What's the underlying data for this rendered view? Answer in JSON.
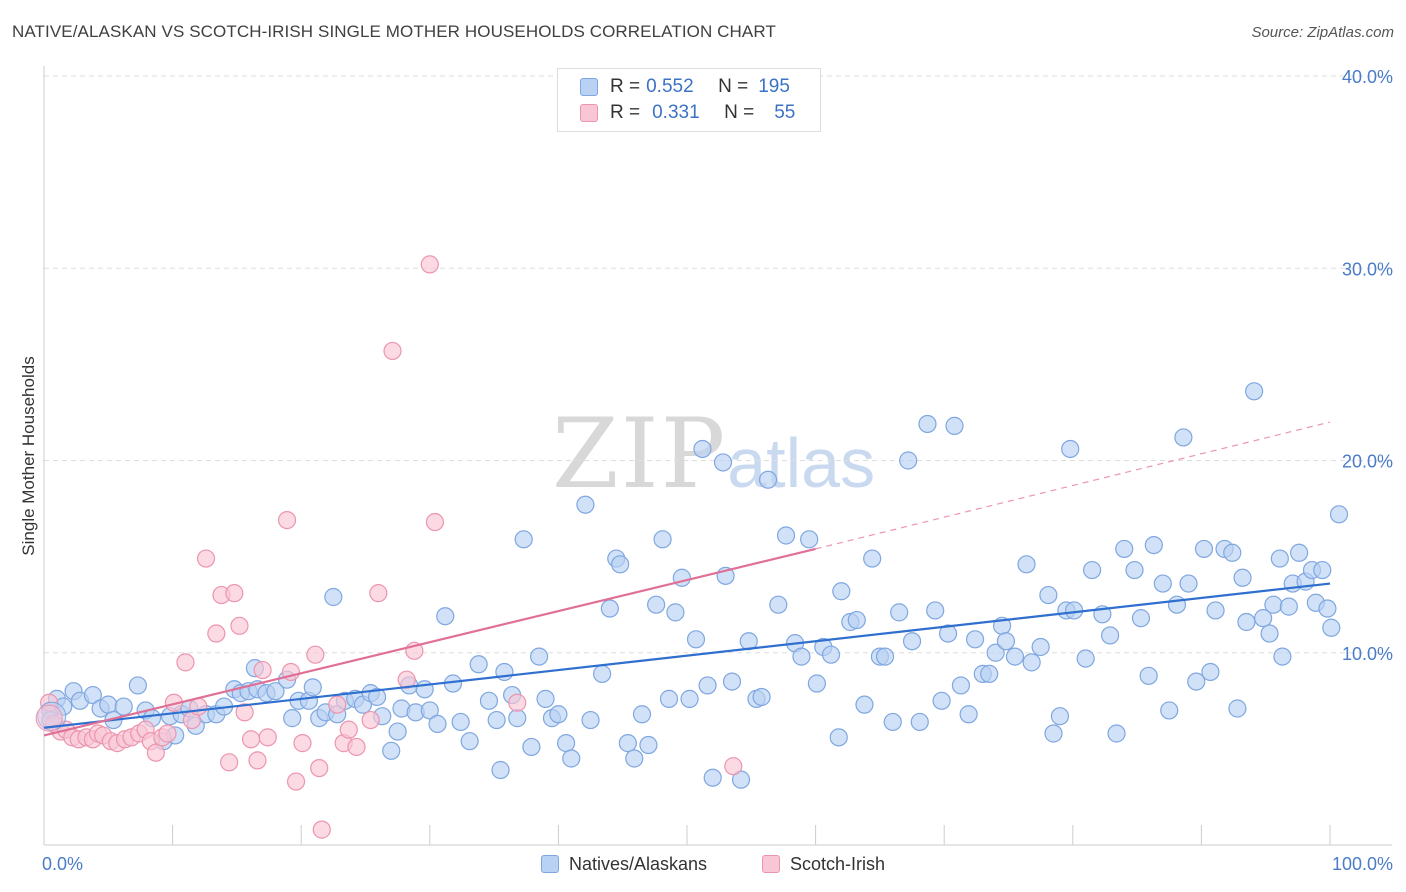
{
  "title": "NATIVE/ALASKAN VS SCOTCH-IRISH SINGLE MOTHER HOUSEHOLDS CORRELATION CHART",
  "source": "Source: ZipAtlas.com",
  "watermark": {
    "zip": "ZIP",
    "atlas": "atlas"
  },
  "legend": [
    {
      "r_label": "R =",
      "r_value": "0.552",
      "n_label": "N =",
      "n_value": "195",
      "fill": "#b9d1f3",
      "stroke": "#7fa7e0"
    },
    {
      "r_label": "R =",
      "r_value": "0.331",
      "n_label": "N =",
      "n_value": "55",
      "fill": "#f9c6d5",
      "stroke": "#ec95ae"
    }
  ],
  "colors": {
    "blue_fill": "#b9d1f3",
    "blue_stroke": "#7fa7e0",
    "blue_line": "#2f6fcf",
    "pink_fill": "#f9c6d5",
    "pink_stroke": "#ec95ae",
    "pink_line": "#e07095",
    "axis_text": "#4a7cc7",
    "grid": "#dddddd"
  },
  "chart_data": {
    "type": "scatter",
    "title": "NATIVE/ALASKAN VS SCOTCH-IRISH SINGLE MOTHER HOUSEHOLDS CORRELATION CHART",
    "xlabel": "",
    "ylabel": "Single Mother Households",
    "xlim": [
      0,
      100
    ],
    "ylim": [
      0,
      40
    ],
    "x_tick_labels": [
      "0.0%",
      "100.0%"
    ],
    "y_ticks": [
      10,
      20,
      30,
      40
    ],
    "y_tick_labels": [
      "10.0%",
      "20.0%",
      "30.0%",
      "40.0%"
    ],
    "grid": true,
    "legend_position": "top-center",
    "series": [
      {
        "name": "Natives/Alaskans",
        "R": 0.552,
        "N": 195,
        "trend": {
          "x": [
            0,
            100
          ],
          "y": [
            6.1,
            13.6
          ],
          "style": "solid"
        },
        "points": [
          [
            0.5,
            7.0
          ],
          [
            0.5,
            6.5
          ],
          [
            1.0,
            7.6
          ],
          [
            1.5,
            7.2
          ],
          [
            2.3,
            8.0
          ],
          [
            2.8,
            7.5
          ],
          [
            3.8,
            7.8
          ],
          [
            4.4,
            7.1
          ],
          [
            5.0,
            7.3
          ],
          [
            5.4,
            6.5
          ],
          [
            6.2,
            7.2
          ],
          [
            7.3,
            8.3
          ],
          [
            7.9,
            7.0
          ],
          [
            8.4,
            6.6
          ],
          [
            9.3,
            5.4
          ],
          [
            9.8,
            6.7
          ],
          [
            10.2,
            5.7
          ],
          [
            10.7,
            6.8
          ],
          [
            11.3,
            7.1
          ],
          [
            11.8,
            6.2
          ],
          [
            12.6,
            6.8
          ],
          [
            13.4,
            6.8
          ],
          [
            14.0,
            7.2
          ],
          [
            14.8,
            8.1
          ],
          [
            15.3,
            7.9
          ],
          [
            15.9,
            8.0
          ],
          [
            16.4,
            9.2
          ],
          [
            16.6,
            8.1
          ],
          [
            17.3,
            7.9
          ],
          [
            18.0,
            8.0
          ],
          [
            18.9,
            8.6
          ],
          [
            19.3,
            6.6
          ],
          [
            19.8,
            7.5
          ],
          [
            20.6,
            7.5
          ],
          [
            20.9,
            8.2
          ],
          [
            21.4,
            6.6
          ],
          [
            21.9,
            6.9
          ],
          [
            22.5,
            12.9
          ],
          [
            22.8,
            6.8
          ],
          [
            23.4,
            7.5
          ],
          [
            24.2,
            7.6
          ],
          [
            24.8,
            7.3
          ],
          [
            25.4,
            7.9
          ],
          [
            25.9,
            7.7
          ],
          [
            26.3,
            6.7
          ],
          [
            27.0,
            4.9
          ],
          [
            27.5,
            5.9
          ],
          [
            27.8,
            7.1
          ],
          [
            28.4,
            8.3
          ],
          [
            28.9,
            6.9
          ],
          [
            29.6,
            8.1
          ],
          [
            30.0,
            7.0
          ],
          [
            30.6,
            6.3
          ],
          [
            31.2,
            11.9
          ],
          [
            31.8,
            8.4
          ],
          [
            32.4,
            6.4
          ],
          [
            33.1,
            5.4
          ],
          [
            33.8,
            9.4
          ],
          [
            34.6,
            7.5
          ],
          [
            35.2,
            6.5
          ],
          [
            35.5,
            3.9
          ],
          [
            35.8,
            9.0
          ],
          [
            36.4,
            7.8
          ],
          [
            36.8,
            6.6
          ],
          [
            37.3,
            15.9
          ],
          [
            37.9,
            5.1
          ],
          [
            38.5,
            9.8
          ],
          [
            39.0,
            7.6
          ],
          [
            39.5,
            6.6
          ],
          [
            40.0,
            6.8
          ],
          [
            40.6,
            5.3
          ],
          [
            41.0,
            4.5
          ],
          [
            42.1,
            17.7
          ],
          [
            42.5,
            6.5
          ],
          [
            43.4,
            8.9
          ],
          [
            44.0,
            12.3
          ],
          [
            44.5,
            14.9
          ],
          [
            44.8,
            14.6
          ],
          [
            45.4,
            5.3
          ],
          [
            45.9,
            4.5
          ],
          [
            46.5,
            6.8
          ],
          [
            47.0,
            5.2
          ],
          [
            47.6,
            12.5
          ],
          [
            48.1,
            15.9
          ],
          [
            48.6,
            7.6
          ],
          [
            49.1,
            12.1
          ],
          [
            49.6,
            13.9
          ],
          [
            50.2,
            7.6
          ],
          [
            50.7,
            10.7
          ],
          [
            51.2,
            20.6
          ],
          [
            51.6,
            8.3
          ],
          [
            52.0,
            3.5
          ],
          [
            52.8,
            19.9
          ],
          [
            53.0,
            14.0
          ],
          [
            53.5,
            8.5
          ],
          [
            54.2,
            3.4
          ],
          [
            54.8,
            10.6
          ],
          [
            55.4,
            7.6
          ],
          [
            55.8,
            7.7
          ],
          [
            56.3,
            19.0
          ],
          [
            57.1,
            12.5
          ],
          [
            57.7,
            16.1
          ],
          [
            58.4,
            10.5
          ],
          [
            58.9,
            9.8
          ],
          [
            59.5,
            15.9
          ],
          [
            60.1,
            8.4
          ],
          [
            60.6,
            10.3
          ],
          [
            61.2,
            9.9
          ],
          [
            61.8,
            5.6
          ],
          [
            62.0,
            13.2
          ],
          [
            62.7,
            11.6
          ],
          [
            63.2,
            11.7
          ],
          [
            63.8,
            7.3
          ],
          [
            64.4,
            14.9
          ],
          [
            65.0,
            9.8
          ],
          [
            65.4,
            9.8
          ],
          [
            66.0,
            6.4
          ],
          [
            66.5,
            12.1
          ],
          [
            67.2,
            20.0
          ],
          [
            67.5,
            10.6
          ],
          [
            68.1,
            6.4
          ],
          [
            68.7,
            21.9
          ],
          [
            69.3,
            12.2
          ],
          [
            69.8,
            7.5
          ],
          [
            70.3,
            11.0
          ],
          [
            70.8,
            21.8
          ],
          [
            71.3,
            8.3
          ],
          [
            71.9,
            6.8
          ],
          [
            72.4,
            10.7
          ],
          [
            73.0,
            8.9
          ],
          [
            73.5,
            8.9
          ],
          [
            74.0,
            10.0
          ],
          [
            74.5,
            11.4
          ],
          [
            74.8,
            10.6
          ],
          [
            75.5,
            9.8
          ],
          [
            76.4,
            14.6
          ],
          [
            76.8,
            9.5
          ],
          [
            77.5,
            10.3
          ],
          [
            78.1,
            13.0
          ],
          [
            78.5,
            5.8
          ],
          [
            79.0,
            6.7
          ],
          [
            79.5,
            12.2
          ],
          [
            79.8,
            20.6
          ],
          [
            80.1,
            12.2
          ],
          [
            81.0,
            9.7
          ],
          [
            81.5,
            14.3
          ],
          [
            82.3,
            12.0
          ],
          [
            82.9,
            10.9
          ],
          [
            83.4,
            5.8
          ],
          [
            84.0,
            15.4
          ],
          [
            84.8,
            14.3
          ],
          [
            85.3,
            11.8
          ],
          [
            85.9,
            8.8
          ],
          [
            86.3,
            15.6
          ],
          [
            87.0,
            13.6
          ],
          [
            87.5,
            7.0
          ],
          [
            88.1,
            12.5
          ],
          [
            88.6,
            21.2
          ],
          [
            89.0,
            13.6
          ],
          [
            89.6,
            8.5
          ],
          [
            90.2,
            15.4
          ],
          [
            90.7,
            9.0
          ],
          [
            91.1,
            12.2
          ],
          [
            91.8,
            15.4
          ],
          [
            92.4,
            15.2
          ],
          [
            92.8,
            7.1
          ],
          [
            93.2,
            13.9
          ],
          [
            93.5,
            11.6
          ],
          [
            94.1,
            23.6
          ],
          [
            94.8,
            11.8
          ],
          [
            95.3,
            11.0
          ],
          [
            95.6,
            12.5
          ],
          [
            96.1,
            14.9
          ],
          [
            96.3,
            9.8
          ],
          [
            96.8,
            12.4
          ],
          [
            97.1,
            13.6
          ],
          [
            97.6,
            15.2
          ],
          [
            98.1,
            13.7
          ],
          [
            98.6,
            14.3
          ],
          [
            98.9,
            12.6
          ],
          [
            99.4,
            14.3
          ],
          [
            99.8,
            12.3
          ],
          [
            100.1,
            11.3
          ],
          [
            100.7,
            17.2
          ]
        ]
      },
      {
        "name": "Scotch-Irish",
        "R": 0.331,
        "N": 55,
        "trend": {
          "x": [
            0,
            60
          ],
          "y": [
            5.7,
            15.4
          ],
          "style": "solid",
          "extension": {
            "x": [
              60,
              100
            ],
            "y": [
              15.4,
              22.0
            ],
            "style": "dashed"
          }
        },
        "points": [
          [
            0.4,
            7.4
          ],
          [
            0.8,
            6.3
          ],
          [
            1.3,
            5.9
          ],
          [
            1.7,
            6.0
          ],
          [
            2.2,
            5.6
          ],
          [
            2.7,
            5.5
          ],
          [
            3.3,
            5.6
          ],
          [
            3.8,
            5.5
          ],
          [
            4.2,
            5.8
          ],
          [
            4.6,
            5.7
          ],
          [
            5.2,
            5.4
          ],
          [
            5.7,
            5.3
          ],
          [
            6.3,
            5.5
          ],
          [
            6.8,
            5.6
          ],
          [
            7.4,
            5.8
          ],
          [
            7.9,
            6.0
          ],
          [
            8.3,
            5.4
          ],
          [
            8.7,
            4.8
          ],
          [
            9.2,
            5.6
          ],
          [
            9.6,
            5.8
          ],
          [
            10.1,
            7.4
          ],
          [
            11.0,
            9.5
          ],
          [
            11.5,
            6.5
          ],
          [
            12.0,
            7.2
          ],
          [
            12.6,
            14.9
          ],
          [
            13.4,
            11.0
          ],
          [
            13.8,
            13.0
          ],
          [
            14.4,
            4.3
          ],
          [
            14.8,
            13.1
          ],
          [
            15.2,
            11.4
          ],
          [
            15.6,
            6.9
          ],
          [
            16.1,
            5.5
          ],
          [
            16.6,
            4.4
          ],
          [
            17.0,
            9.1
          ],
          [
            17.4,
            5.6
          ],
          [
            18.9,
            16.9
          ],
          [
            19.2,
            9.0
          ],
          [
            19.6,
            3.3
          ],
          [
            20.1,
            5.3
          ],
          [
            21.1,
            9.9
          ],
          [
            21.4,
            4.0
          ],
          [
            21.6,
            0.8
          ],
          [
            22.8,
            7.3
          ],
          [
            23.3,
            5.3
          ],
          [
            23.7,
            6.0
          ],
          [
            24.3,
            5.1
          ],
          [
            25.4,
            6.5
          ],
          [
            26.0,
            13.1
          ],
          [
            27.1,
            25.7
          ],
          [
            28.2,
            8.6
          ],
          [
            28.8,
            10.1
          ],
          [
            30.0,
            30.2
          ],
          [
            30.4,
            16.8
          ],
          [
            36.8,
            7.4
          ],
          [
            53.6,
            4.1
          ]
        ]
      }
    ],
    "bottom_legend": [
      "Natives/Alaskans",
      "Scotch-Irish"
    ]
  }
}
